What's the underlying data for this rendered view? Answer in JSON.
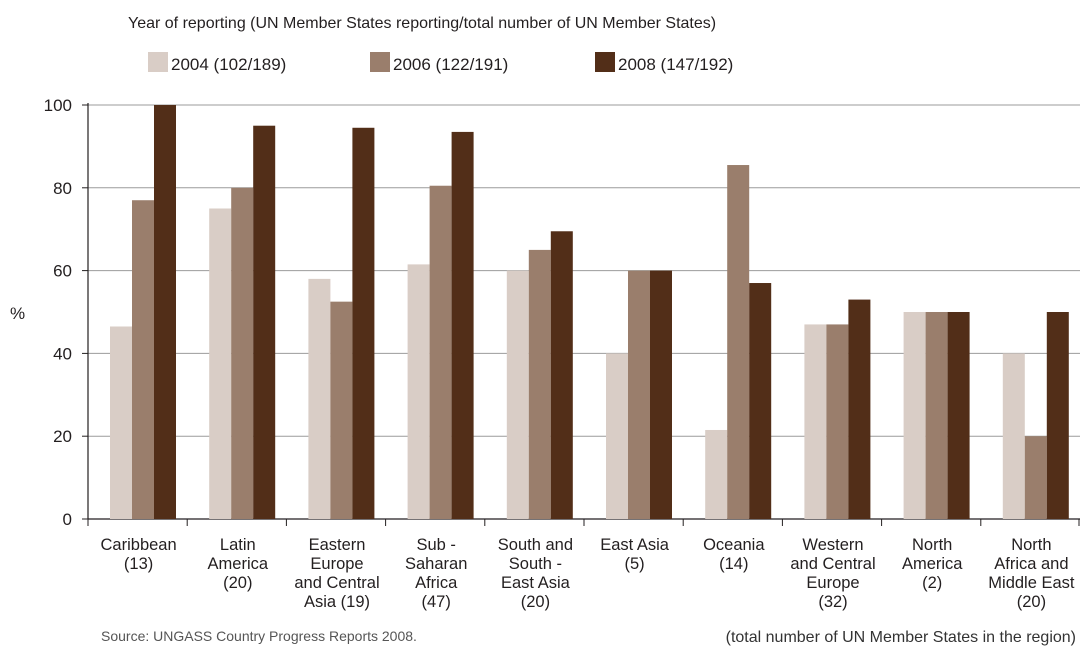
{
  "chart_data": {
    "type": "bar",
    "legend_title": "Year of reporting (UN Member States reporting/total number of UN Member States)",
    "legend_position": "top-left",
    "ylabel": "%",
    "xlabel": "",
    "ylim": [
      0,
      100
    ],
    "yticks": [
      0,
      20,
      40,
      60,
      80,
      100
    ],
    "grid": true,
    "categories": [
      [
        "Caribbean",
        "(13)"
      ],
      [
        "Latin",
        "America",
        "(20)"
      ],
      [
        "Eastern",
        "Europe",
        "and Central",
        "Asia (19)"
      ],
      [
        "Sub -",
        "Saharan",
        "Africa",
        "(47)"
      ],
      [
        "South and",
        "South -",
        "East Asia",
        "(20)"
      ],
      [
        "East Asia",
        "(5)"
      ],
      [
        "Oceania",
        "(14)"
      ],
      [
        "Western",
        "and Central",
        "Europe",
        "(32)"
      ],
      [
        "North",
        "America",
        "(2)"
      ],
      [
        "North",
        "Africa and",
        "Middle East",
        "(20)"
      ]
    ],
    "series": [
      {
        "name": "2004 (102/189)",
        "year": "2004",
        "ratio": "(102/189)",
        "color": "#d9cdc6",
        "values": [
          46.5,
          75,
          58,
          61.5,
          60,
          40,
          21.5,
          47,
          50,
          40
        ]
      },
      {
        "name": "2006 (122/191)",
        "year": "2006",
        "ratio": "(122/191)",
        "color": "#9a7e6c",
        "values": [
          77,
          80,
          52.5,
          80.5,
          65,
          60,
          85.5,
          47,
          50,
          20
        ]
      },
      {
        "name": "2008 (147/192)",
        "year": "2008",
        "ratio": "(147/192)",
        "color": "#522e18",
        "values": [
          100,
          95,
          94.5,
          93.5,
          69.5,
          60,
          57,
          53,
          50,
          50
        ]
      }
    ]
  },
  "footer": {
    "source": "Source: UNGASS Country Progress Reports 2008.",
    "note": "(total number of UN Member States in the region)"
  }
}
